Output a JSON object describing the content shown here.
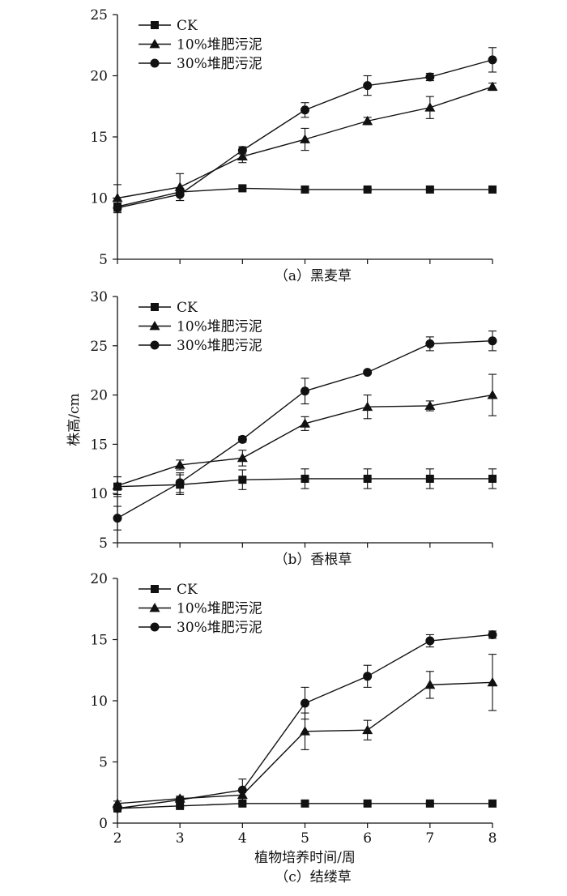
{
  "colors": {
    "ink": "#111111",
    "background": "#ffffff"
  },
  "chart_data": [
    {
      "type": "line",
      "caption": "（a）黑麦草",
      "x": [
        2,
        3,
        4,
        5,
        6,
        7,
        8
      ],
      "ylim": [
        5,
        25
      ],
      "yticks": [
        5,
        10,
        15,
        20,
        25
      ],
      "ylabel": "",
      "xlabel": "",
      "legend": "top-left",
      "grid": false,
      "series": [
        {
          "name": "CK",
          "marker": "square",
          "values": [
            9.3,
            10.5,
            10.8,
            10.7,
            10.7,
            10.7,
            10.7
          ],
          "errors": [
            0.2,
            0.3,
            0.2,
            0.1,
            0.1,
            0.1,
            0.1
          ]
        },
        {
          "name": "10%堆肥污泥",
          "marker": "triangle",
          "values": [
            10.0,
            10.9,
            13.4,
            14.8,
            16.3,
            17.4,
            19.1
          ],
          "errors": [
            1.1,
            1.1,
            0.5,
            0.9,
            0.3,
            0.9,
            0.3
          ]
        },
        {
          "name": "30%堆肥污泥",
          "marker": "circle",
          "values": [
            9.2,
            10.3,
            13.9,
            17.2,
            19.2,
            19.9,
            21.3
          ],
          "errors": [
            0.4,
            0.5,
            0.3,
            0.6,
            0.8,
            0.3,
            1.0
          ]
        }
      ]
    },
    {
      "type": "line",
      "caption": "（b）香根草",
      "x": [
        2,
        3,
        4,
        5,
        6,
        7,
        8
      ],
      "ylim": [
        5,
        30
      ],
      "yticks": [
        5,
        10,
        15,
        20,
        25,
        30
      ],
      "ylabel": "株高/cm",
      "xlabel": "",
      "legend": "top-left",
      "grid": false,
      "series": [
        {
          "name": "CK",
          "marker": "square",
          "values": [
            10.7,
            10.9,
            11.4,
            11.5,
            11.5,
            11.5,
            11.5
          ],
          "errors": [
            1.0,
            1.0,
            1.0,
            1.0,
            1.0,
            1.0,
            1.0
          ]
        },
        {
          "name": "10%堆肥污泥",
          "marker": "triangle",
          "values": [
            10.8,
            12.9,
            13.6,
            17.1,
            18.8,
            18.9,
            20.0
          ],
          "errors": [
            0.9,
            0.5,
            0.8,
            0.7,
            1.2,
            0.5,
            2.1
          ]
        },
        {
          "name": "30%堆肥污泥",
          "marker": "circle",
          "values": [
            7.5,
            11.1,
            15.5,
            20.4,
            22.3,
            25.2,
            25.5
          ],
          "errors": [
            1.2,
            1.0,
            0.3,
            1.3,
            0.2,
            0.7,
            1.0
          ]
        }
      ]
    },
    {
      "type": "line",
      "caption": "（c）结缕草",
      "x": [
        2,
        3,
        4,
        5,
        6,
        7,
        8
      ],
      "xticks": [
        2,
        3,
        4,
        5,
        6,
        7,
        8
      ],
      "ylim": [
        0,
        20
      ],
      "yticks": [
        0,
        5,
        10,
        15,
        20
      ],
      "ylabel": "",
      "xlabel": "植物培养时间/周",
      "legend": "top-left",
      "grid": false,
      "series": [
        {
          "name": "CK",
          "marker": "square",
          "values": [
            1.2,
            1.4,
            1.6,
            1.6,
            1.6,
            1.6,
            1.6
          ],
          "errors": [
            0.1,
            0.1,
            0.1,
            0.05,
            0.05,
            0.05,
            0.05
          ]
        },
        {
          "name": "10%堆肥污泥",
          "marker": "triangle",
          "values": [
            1.6,
            2.0,
            2.3,
            7.5,
            7.6,
            11.3,
            11.5
          ],
          "errors": [
            0.2,
            0.2,
            0.4,
            1.5,
            0.8,
            1.1,
            2.3
          ]
        },
        {
          "name": "30%堆肥污泥",
          "marker": "circle",
          "values": [
            1.2,
            1.9,
            2.7,
            9.8,
            12.0,
            14.9,
            15.4
          ],
          "errors": [
            0.2,
            0.2,
            0.9,
            1.3,
            0.9,
            0.5,
            0.3
          ]
        }
      ]
    }
  ]
}
